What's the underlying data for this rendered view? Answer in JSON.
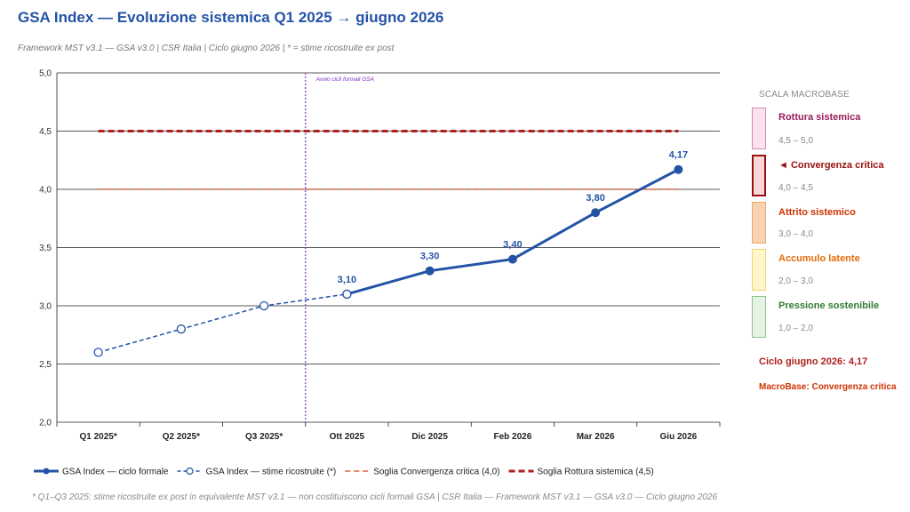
{
  "header": {
    "title": "GSA Index — Evoluzione sistemica  Q1 2025 → giugno 2026",
    "subtitle": "Framework MST v3.1 — GSA v3.0  |  CSR Italia  |  Ciclo giugno 2026  |  * = stime ricostruite ex post"
  },
  "chart_data": {
    "type": "line",
    "categories": [
      "Q1 2025*",
      "Q2 2025*",
      "Q3 2025*",
      "Ott 2025",
      "Dic 2025",
      "Feb 2026",
      "Mar 2026",
      "Giu 2026"
    ],
    "ylim": [
      2.0,
      5.0
    ],
    "yticks": [
      "2,0",
      "2,5",
      "3,0",
      "3,5",
      "4,0",
      "4,5",
      "5,0"
    ],
    "grid": true,
    "series": [
      {
        "name": "GSA Index — ciclo formale",
        "style": "solid",
        "values": [
          null,
          null,
          null,
          3.1,
          3.3,
          3.4,
          3.8,
          4.17
        ],
        "color": "#2453a6"
      },
      {
        "name": "GSA Index — stime ricostruite (*)",
        "style": "dashed-open",
        "values": [
          2.6,
          2.8,
          3.0,
          3.1,
          null,
          null,
          null,
          null
        ],
        "color": "#2453a6"
      }
    ],
    "data_labels": [
      {
        "index": 3,
        "text": "3,10"
      },
      {
        "index": 4,
        "text": "3,30"
      },
      {
        "index": 5,
        "text": "3,40"
      },
      {
        "index": 6,
        "text": "3,80"
      },
      {
        "index": 7,
        "text": "4,17"
      }
    ],
    "thresholds": [
      {
        "name": "Soglia Convergenza critica (4,0)",
        "value": 4.0,
        "color": "#e0603a",
        "style": "dashed"
      },
      {
        "name": "Soglia Rottura sistemica (4,5)",
        "value": 4.5,
        "color": "#b01e1e",
        "style": "dashed-bold"
      }
    ],
    "annotation": {
      "text": "Avvio cicli formali GSA",
      "color": "#7b2cc9"
    },
    "legend_position": "bottom"
  },
  "scale": {
    "heading": "SCALA MACROBASE",
    "bands": [
      {
        "name": "Rottura sistemica",
        "range": "4,5 – 5,0",
        "color": "#9b1d5a",
        "fill": "#fbe3ee",
        "border": "#d48cb2"
      },
      {
        "name": "◄ Convergenza critica",
        "range": "4,0 – 4,5",
        "color": "#9a1010",
        "fill": "#f7d7d7",
        "border": "#9a1010"
      },
      {
        "name": "Attrito sistemico",
        "range": "3,0 – 4,0",
        "color": "#cc3300",
        "fill": "#fbd2b0",
        "border": "#e8a877"
      },
      {
        "name": "Accumulo latente",
        "range": "2,0 – 3,0",
        "color": "#e36c0a",
        "fill": "#fff6cc",
        "border": "#f0d572"
      },
      {
        "name": "Pressione sostenibile",
        "range": "1,0 – 2,0",
        "color": "#2e7d32",
        "fill": "#e4f3e4",
        "border": "#8cc48e"
      }
    ],
    "cycle_value": "Ciclo giugno 2026: 4,17",
    "cycle_status": "MacroBase: Convergenza critica"
  },
  "footnote": "* Q1–Q3 2025: stime ricostruite ex post in equivalente MST v3.1 — non costituiscono cicli formali GSA  |  CSR Italia — Framework MST v3.1 — GSA v3.0 — Ciclo giugno 2026"
}
